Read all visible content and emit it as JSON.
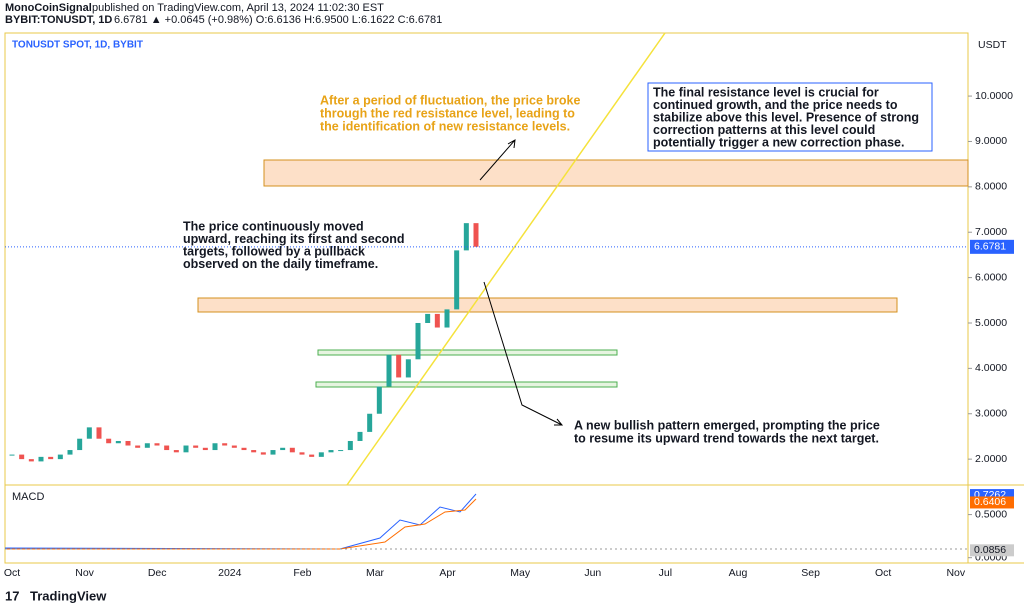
{
  "header": {
    "author": "MonoCoinSignal",
    "published": "published on TradingView.com, April 13, 2024 11:02:30 EST",
    "symbol": "BYBIT:TONUSDT, 1D",
    "quote": "6.6781 ▲ +0.0645 (+0.98%) O:6.6136 H:6.9500 L:6.1622 C:6.6781"
  },
  "chart_data": {
    "type": "candlestick",
    "title": "TONUSDT SPOT, 1D, BYBIT",
    "y_axis_label": "USDT",
    "values": [
      2.1,
      2.0,
      1.95,
      2.05,
      2.0,
      2.1,
      2.2,
      2.45,
      2.7,
      2.45,
      2.35,
      2.4,
      2.3,
      2.25,
      2.35,
      2.3,
      2.2,
      2.15,
      2.3,
      2.25,
      2.2,
      2.35,
      2.3,
      2.25,
      2.2,
      2.15,
      2.1,
      2.2,
      2.25,
      2.15,
      2.1,
      2.05,
      2.15,
      2.2,
      2.2,
      2.4,
      2.6,
      3.0,
      3.6,
      4.3,
      3.8,
      4.2,
      5.0,
      5.2,
      4.9,
      5.3,
      6.6,
      7.2,
      6.68
    ],
    "up_color": "#26a69a",
    "down_color": "#ef5350",
    "ylim": [
      1.43,
      11.39
    ],
    "yticks": [
      {
        "value": 2,
        "label": "2.0000"
      },
      {
        "value": 3,
        "label": "3.0000"
      },
      {
        "value": 4,
        "label": "4.0000"
      },
      {
        "value": 5,
        "label": "5.0000"
      },
      {
        "value": 6,
        "label": "6.0000"
      },
      {
        "value": 7,
        "label": "7.0000"
      },
      {
        "value": 8,
        "label": "8.0000"
      },
      {
        "value": 9,
        "label": "9.0000"
      },
      {
        "value": 10,
        "label": "10.0000"
      }
    ],
    "last_price": {
      "value": 6.6781,
      "label": "6.6781"
    },
    "x_labels": [
      "Oct",
      "Nov",
      "Dec",
      "2024",
      "Feb",
      "Mar",
      "Apr",
      "May",
      "Jun",
      "Jul",
      "Aug",
      "Sep",
      "Oct",
      "Nov"
    ],
    "macd": {
      "title": "MACD",
      "ylim": [
        -0.05,
        0.82
      ],
      "yticks": [
        {
          "value": 0,
          "label": "0.0000"
        },
        {
          "value": 0.5,
          "label": "0.5000"
        }
      ],
      "labels": [
        {
          "value": 0.7262,
          "label": "0.7262",
          "color": "#2962ff"
        },
        {
          "value": 0.6406,
          "label": "0.6406",
          "color": "#ff6d00"
        },
        {
          "value": 0.0856,
          "label": "0.0856",
          "color": "#cccccc"
        }
      ]
    }
  },
  "annotations": {
    "orange": [
      "After a period of fluctuation, the price broke",
      "through the red resistance level, leading to",
      "the identification of new resistance levels."
    ],
    "box": [
      "The final resistance level is crucial for",
      "continued growth, and the price needs to",
      "stabilize above this level. Presence of strong",
      "correction patterns at this level could",
      "potentially trigger a new correction phase."
    ],
    "left": [
      "The price continuously moved",
      "upward, reaching its first and second",
      "targets, followed by a pullback",
      "observed on the daily timeframe."
    ],
    "bottom": [
      "A new bullish pattern emerged, prompting the price",
      "to resume its upward trend towards the next target."
    ]
  },
  "footer": "TradingView"
}
